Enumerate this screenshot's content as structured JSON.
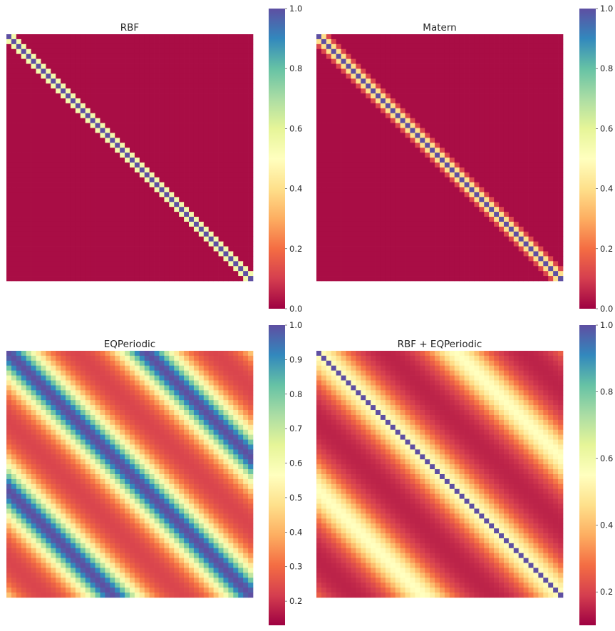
{
  "chart_data": [
    {
      "type": "heatmap",
      "title": "RBF",
      "kernel": "rbf",
      "grid_size": 50,
      "value_range": [
        0.0,
        1.0
      ],
      "colorbar": {
        "range": [
          0.0,
          1.0
        ],
        "ticks": [
          0.0,
          0.2,
          0.4,
          0.6,
          0.8,
          1.0
        ],
        "tick_labels": [
          "0.0",
          "0.2",
          "0.4",
          "0.6",
          "0.8",
          "1.0"
        ]
      }
    },
    {
      "type": "heatmap",
      "title": "Matern",
      "kernel": "matern",
      "grid_size": 50,
      "value_range": [
        0.0,
        1.0
      ],
      "colorbar": {
        "range": [
          0.0,
          1.0
        ],
        "ticks": [
          0.0,
          0.2,
          0.4,
          0.6,
          0.8,
          1.0
        ],
        "tick_labels": [
          "0.0",
          "0.2",
          "0.4",
          "0.6",
          "0.8",
          "1.0"
        ]
      }
    },
    {
      "type": "heatmap",
      "title": "EQPeriodic",
      "kernel": "eq_periodic",
      "grid_size": 50,
      "period_cells": 28,
      "value_range": [
        0.13,
        1.0
      ],
      "colorbar": {
        "range": [
          0.13,
          1.0
        ],
        "ticks": [
          0.2,
          0.3,
          0.4,
          0.5,
          0.6,
          0.7,
          0.8,
          0.9,
          1.0
        ],
        "tick_labels": [
          "0.2",
          "0.3",
          "0.4",
          "0.5",
          "0.6",
          "0.7",
          "0.8",
          "0.9",
          "1.0"
        ]
      }
    },
    {
      "type": "heatmap",
      "title": "RBF + EQPeriodic",
      "kernel": "rbf_plus_eq_periodic",
      "grid_size": 50,
      "period_cells": 28,
      "value_range": [
        0.1,
        1.0
      ],
      "colorbar": {
        "range": [
          0.1,
          1.0
        ],
        "ticks": [
          0.2,
          0.4,
          0.6,
          0.8,
          1.0
        ],
        "tick_labels": [
          "0.2",
          "0.4",
          "0.6",
          "0.8",
          "1.0"
        ]
      }
    }
  ],
  "colormap": {
    "name": "Spectral",
    "stops": [
      "#9e0142",
      "#d53e4f",
      "#f46d43",
      "#fdae61",
      "#fee08b",
      "#ffffbf",
      "#e6f598",
      "#abdda4",
      "#66c2a5",
      "#3288bd",
      "#5e4fa2"
    ]
  }
}
